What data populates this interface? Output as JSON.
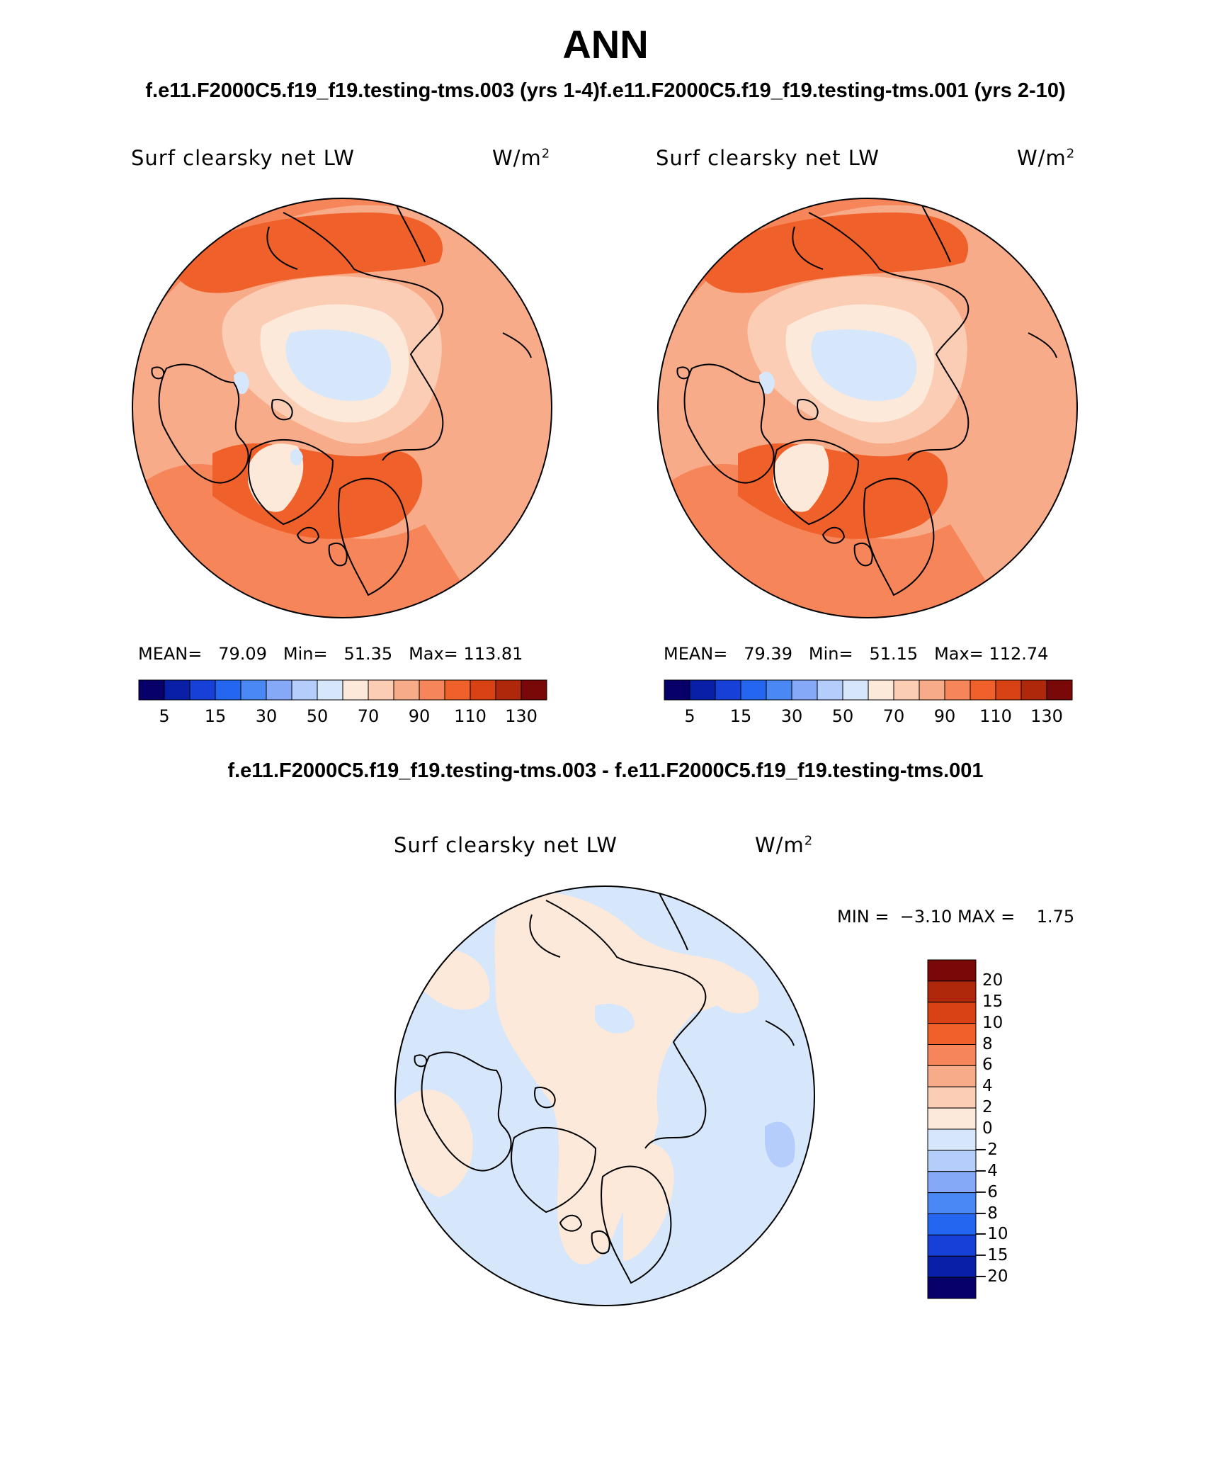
{
  "title": "ANN",
  "case_header": "f.e11.F2000C5.f19_f19.testing-tms.003 (yrs 1-4)f.e11.F2000C5.f19_f19.testing-tms.001 (yrs 2-10)",
  "diff_header": "f.e11.F2000C5.f19_f19.testing-tms.003 - f.e11.F2000C5.f19_f19.testing-tms.001",
  "panels": [
    {
      "variable": "Surf clearsky net LW",
      "units_base": "W/m",
      "units_exp": "2",
      "mean_label": "MEAN=",
      "mean": "79.09",
      "min_label": "Min=",
      "min": "51.35",
      "max_label": "Max=",
      "max": "113.81"
    },
    {
      "variable": "Surf clearsky net LW",
      "units_base": "W/m",
      "units_exp": "2",
      "mean_label": "MEAN=",
      "mean": "79.39",
      "min_label": "Min=",
      "min": "51.15",
      "max_label": "Max=",
      "max": "112.74"
    },
    {
      "variable": "Surf clearsky net LW",
      "units_base": "W/m",
      "units_exp": "2",
      "min_label": "MIN =",
      "min": "−3.10",
      "max_label": "MAX =",
      "max": "1.75"
    }
  ],
  "abs_colorbar": {
    "colors": [
      "#08006a",
      "#0a1fa8",
      "#1740d8",
      "#2566f0",
      "#4a88f5",
      "#85a8f7",
      "#b4cdfa",
      "#d7e7fb",
      "#fde9d9",
      "#fbcdb4",
      "#f8ab88",
      "#f6865a",
      "#f0602a",
      "#d94215",
      "#b0280b",
      "#7a0808"
    ],
    "labels": [
      "5",
      "15",
      "30",
      "50",
      "70",
      "90",
      "110",
      "130"
    ]
  },
  "diff_colorbar": {
    "colors": [
      "#7a0808",
      "#b0280b",
      "#d94215",
      "#f0602a",
      "#f6865a",
      "#f8ab88",
      "#fbcdb4",
      "#fde9d9",
      "#d7e7fb",
      "#b4cdfa",
      "#85a8f7",
      "#4a88f5",
      "#2566f0",
      "#1740d8",
      "#0a1fa8",
      "#08006a"
    ],
    "labels": [
      "20",
      "15",
      "10",
      "8",
      "6",
      "4",
      "2",
      "0",
      "−2",
      "−4",
      "−6",
      "−8",
      "−10",
      "−15",
      "−20"
    ]
  }
}
